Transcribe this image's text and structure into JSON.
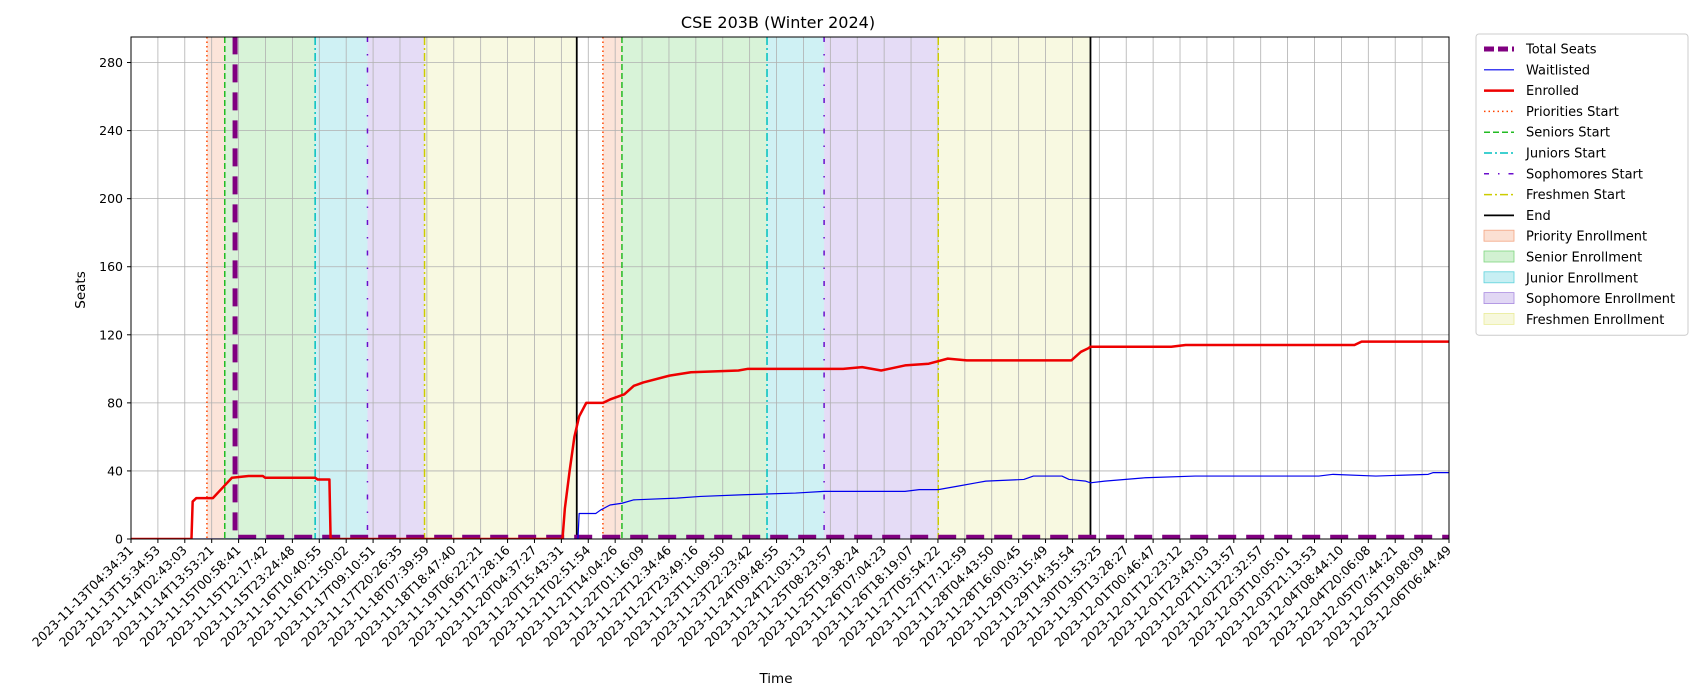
{
  "chart_data": {
    "type": "line",
    "title": "CSE 203B (Winter 2024)",
    "xlabel": "Time",
    "ylabel": "Seats",
    "ylim": [
      0,
      295
    ],
    "yticks": [
      0,
      40,
      80,
      120,
      160,
      200,
      240,
      280
    ],
    "grid": true,
    "legend_position": "outside-right",
    "x_range": [
      "2023-11-13T04:34:31",
      "2023-12-06T06:44:49"
    ],
    "x_tick_labels": [
      "2023-11-13T04:34:31",
      "2023-11-13T15:34:53",
      "2023-11-14T02:43:03",
      "2023-11-14T13:53:21",
      "2023-11-15T00:58:41",
      "2023-11-15T12:17:42",
      "2023-11-15T23:24:48",
      "2023-11-16T10:40:55",
      "2023-11-16T21:50:02",
      "2023-11-17T09:10:51",
      "2023-11-17T20:26:35",
      "2023-11-18T07:39:59",
      "2023-11-18T18:47:40",
      "2023-11-19T06:22:21",
      "2023-11-19T17:28:16",
      "2023-11-20T04:37:27",
      "2023-11-20T15:43:31",
      "2023-11-21T02:51:54",
      "2023-11-21T14:04:26",
      "2023-11-22T01:16:09",
      "2023-11-22T12:34:46",
      "2023-11-22T23:49:16",
      "2023-11-23T11:09:50",
      "2023-11-23T22:23:42",
      "2023-11-24T09:48:55",
      "2023-11-24T21:03:13",
      "2023-11-25T08:23:57",
      "2023-11-25T19:38:24",
      "2023-11-26T07:04:23",
      "2023-11-26T18:19:07",
      "2023-11-27T05:54:22",
      "2023-11-27T17:12:59",
      "2023-11-28T04:43:50",
      "2023-11-28T16:00:45",
      "2023-11-29T03:15:49",
      "2023-11-29T14:35:54",
      "2023-11-30T01:53:25",
      "2023-11-30T13:28:27",
      "2023-12-01T00:46:47",
      "2023-12-01T12:23:12",
      "2023-12-01T23:43:03",
      "2023-12-02T11:13:57",
      "2023-12-02T22:32:57",
      "2023-12-03T10:05:01",
      "2023-12-03T21:13:53",
      "2023-12-04T08:44:10",
      "2023-12-04T20:06:08",
      "2023-12-05T07:44:21",
      "2023-12-05T19:08:09",
      "2023-12-06T06:44:49"
    ],
    "phases": [
      {
        "name": "Priority Enrollment",
        "color": "#f4a582",
        "start": "2023-11-14T12:30:00",
        "end": "2023-11-14T20:00:00"
      },
      {
        "name": "Senior Enrollment",
        "color": "#7fd67f",
        "start": "2023-11-14T20:00:00",
        "end": "2023-11-16T10:00:00"
      },
      {
        "name": "Junior Enrollment",
        "color": "#5fd2dc",
        "start": "2023-11-16T10:00:00",
        "end": "2023-11-17T08:00:00"
      },
      {
        "name": "Sophomore Enrollment",
        "color": "#a98be0",
        "start": "2023-11-17T08:00:00",
        "end": "2023-11-18T08:00:00"
      },
      {
        "name": "Freshmen Enrollment",
        "color": "#e9ec9a",
        "start": "2023-11-18T08:00:00",
        "end": "2023-11-21T00:00:00"
      },
      {
        "name": "Priority Enrollment",
        "color": "#f4a582",
        "start": "2023-11-21T11:00:00",
        "end": "2023-11-21T19:00:00"
      },
      {
        "name": "Senior Enrollment",
        "color": "#7fd67f",
        "start": "2023-11-21T19:00:00",
        "end": "2023-11-24T08:00:00"
      },
      {
        "name": "Junior Enrollment",
        "color": "#5fd2dc",
        "start": "2023-11-24T08:00:00",
        "end": "2023-11-25T08:00:00"
      },
      {
        "name": "Sophomore Enrollment",
        "color": "#a98be0",
        "start": "2023-11-25T08:00:00",
        "end": "2023-11-27T08:00:00"
      },
      {
        "name": "Freshmen Enrollment",
        "color": "#e9ec9a",
        "start": "2023-11-27T08:00:00",
        "end": "2023-11-30T00:00:00"
      }
    ],
    "markers": [
      {
        "name": "Priorities Start",
        "style": "dotted",
        "color": "#ff4500",
        "x": [
          "2023-11-14T12:30:00",
          "2023-11-21T11:00:00"
        ]
      },
      {
        "name": "Seniors Start",
        "style": "dashed",
        "color": "#22bb22",
        "x": [
          "2023-11-14T20:00:00",
          "2023-11-21T19:00:00"
        ]
      },
      {
        "name": "Juniors Start",
        "style": "dashdot",
        "color": "#00c0c0",
        "x": [
          "2023-11-16T10:00:00",
          "2023-11-24T08:00:00"
        ]
      },
      {
        "name": "Sophomores Start",
        "style": "loosedash",
        "color": "#6a0dcc",
        "x": [
          "2023-11-17T08:00:00",
          "2023-11-25T08:00:00"
        ]
      },
      {
        "name": "Freshmen Start",
        "style": "dashdot",
        "color": "#cccc00",
        "x": [
          "2023-11-18T08:00:00",
          "2023-11-27T08:00:00"
        ]
      },
      {
        "name": "End",
        "style": "solid",
        "color": "#000000",
        "x": [
          "2023-11-21T00:00:00",
          "2023-11-30T00:00:00"
        ]
      }
    ],
    "series": [
      {
        "name": "Total Seats",
        "color": "#800080",
        "style": "dashed-thick",
        "points": [
          [
            "2023-11-13T04:34:31",
            300
          ],
          [
            "2023-11-15T00:20:00",
            300
          ],
          [
            "2023-11-15T00:20:00",
            1
          ],
          [
            "2023-12-06T06:44:49",
            1
          ]
        ]
      },
      {
        "name": "Waitlisted",
        "color": "#0000ee",
        "style": "solid-thin",
        "points": [
          [
            "2023-11-13T04:34:31",
            0
          ],
          [
            "2023-11-21T00:30:00",
            0
          ],
          [
            "2023-11-21T01:00:00",
            15
          ],
          [
            "2023-11-21T08:00:00",
            15
          ],
          [
            "2023-11-21T10:00:00",
            17
          ],
          [
            "2023-11-21T14:00:00",
            20
          ],
          [
            "2023-11-21T19:00:00",
            21
          ],
          [
            "2023-11-22T00:00:00",
            23
          ],
          [
            "2023-11-22T18:00:00",
            24
          ],
          [
            "2023-11-23T04:00:00",
            25
          ],
          [
            "2023-11-23T22:00:00",
            26
          ],
          [
            "2023-11-24T20:00:00",
            27
          ],
          [
            "2023-11-25T08:00:00",
            28
          ],
          [
            "2023-11-26T18:00:00",
            28
          ],
          [
            "2023-11-27T00:00:00",
            29
          ],
          [
            "2023-11-27T08:00:00",
            29
          ],
          [
            "2023-11-27T16:00:00",
            31
          ],
          [
            "2023-11-28T00:00:00",
            33
          ],
          [
            "2023-11-28T04:00:00",
            34
          ],
          [
            "2023-11-28T20:00:00",
            35
          ],
          [
            "2023-11-29T00:00:00",
            37
          ],
          [
            "2023-11-29T12:00:00",
            37
          ],
          [
            "2023-11-29T15:00:00",
            35
          ],
          [
            "2023-11-29T22:00:00",
            34
          ],
          [
            "2023-11-30T00:00:00",
            33
          ],
          [
            "2023-11-30T06:00:00",
            34
          ],
          [
            "2023-11-30T23:00:00",
            36
          ],
          [
            "2023-12-01T20:00:00",
            37
          ],
          [
            "2023-12-04T00:00:00",
            37
          ],
          [
            "2023-12-04T06:00:00",
            38
          ],
          [
            "2023-12-05T00:00:00",
            37
          ],
          [
            "2023-12-05T22:00:00",
            38
          ],
          [
            "2023-12-06T00:00:00",
            39
          ],
          [
            "2023-12-06T06:44:49",
            39
          ]
        ]
      },
      {
        "name": "Enrolled",
        "color": "#ee0000",
        "style": "solid-thick",
        "points": [
          [
            "2023-11-13T04:34:31",
            0
          ],
          [
            "2023-11-14T06:00:00",
            0
          ],
          [
            "2023-11-14T06:30:00",
            22
          ],
          [
            "2023-11-14T08:00:00",
            24
          ],
          [
            "2023-11-14T15:00:00",
            24
          ],
          [
            "2023-11-14T19:00:00",
            30
          ],
          [
            "2023-11-14T23:00:00",
            36
          ],
          [
            "2023-11-15T06:00:00",
            37
          ],
          [
            "2023-11-15T12:00:00",
            37
          ],
          [
            "2023-11-15T13:00:00",
            36
          ],
          [
            "2023-11-16T10:00:00",
            36
          ],
          [
            "2023-11-16T11:00:00",
            35
          ],
          [
            "2023-11-16T16:00:00",
            35
          ],
          [
            "2023-11-16T16:30:00",
            0
          ],
          [
            "2023-11-20T18:00:00",
            0
          ],
          [
            "2023-11-20T19:00:00",
            18
          ],
          [
            "2023-11-20T21:00:00",
            40
          ],
          [
            "2023-11-20T23:00:00",
            60
          ],
          [
            "2023-11-21T01:00:00",
            72
          ],
          [
            "2023-11-21T04:00:00",
            80
          ],
          [
            "2023-11-21T11:00:00",
            80
          ],
          [
            "2023-11-21T14:00:00",
            82
          ],
          [
            "2023-11-21T20:00:00",
            85
          ],
          [
            "2023-11-22T00:00:00",
            90
          ],
          [
            "2023-11-22T04:00:00",
            92
          ],
          [
            "2023-11-22T15:00:00",
            96
          ],
          [
            "2023-11-23T00:00:00",
            98
          ],
          [
            "2023-11-23T20:00:00",
            99
          ],
          [
            "2023-11-24T00:00:00",
            100
          ],
          [
            "2023-11-25T16:00:00",
            100
          ],
          [
            "2023-11-26T00:00:00",
            101
          ],
          [
            "2023-11-26T08:00:00",
            99
          ],
          [
            "2023-11-26T18:00:00",
            102
          ],
          [
            "2023-11-27T04:00:00",
            103
          ],
          [
            "2023-11-27T12:00:00",
            106
          ],
          [
            "2023-11-27T20:00:00",
            105
          ],
          [
            "2023-11-29T16:00:00",
            105
          ],
          [
            "2023-11-29T20:00:00",
            110
          ],
          [
            "2023-11-29T23:00:00",
            112
          ],
          [
            "2023-11-30T00:00:00",
            113
          ],
          [
            "2023-12-01T10:00:00",
            113
          ],
          [
            "2023-12-01T16:00:00",
            114
          ],
          [
            "2023-12-04T15:00:00",
            114
          ],
          [
            "2023-12-04T18:00:00",
            116
          ],
          [
            "2023-12-06T06:44:49",
            116
          ]
        ]
      }
    ],
    "legend": [
      {
        "label": "Total Seats",
        "kind": "line",
        "color": "#800080",
        "style": "dashed-thick"
      },
      {
        "label": "Waitlisted",
        "kind": "line",
        "color": "#0000ee",
        "style": "solid-thin"
      },
      {
        "label": "Enrolled",
        "kind": "line",
        "color": "#ee0000",
        "style": "solid-thick"
      },
      {
        "label": "Priorities Start",
        "kind": "line",
        "color": "#ff4500",
        "style": "dotted"
      },
      {
        "label": "Seniors Start",
        "kind": "line",
        "color": "#22bb22",
        "style": "dashed"
      },
      {
        "label": "Juniors Start",
        "kind": "line",
        "color": "#00c0c0",
        "style": "dashdot"
      },
      {
        "label": "Sophomores Start",
        "kind": "line",
        "color": "#6a0dcc",
        "style": "loosedash"
      },
      {
        "label": "Freshmen Start",
        "kind": "line",
        "color": "#cccc00",
        "style": "dashdot"
      },
      {
        "label": "End",
        "kind": "line",
        "color": "#000000",
        "style": "solid"
      },
      {
        "label": "Priority Enrollment",
        "kind": "patch",
        "color": "#f4a582"
      },
      {
        "label": "Senior Enrollment",
        "kind": "patch",
        "color": "#7fd67f"
      },
      {
        "label": "Junior Enrollment",
        "kind": "patch",
        "color": "#5fd2dc"
      },
      {
        "label": "Sophomore Enrollment",
        "kind": "patch",
        "color": "#a98be0"
      },
      {
        "label": "Freshmen Enrollment",
        "kind": "patch",
        "color": "#e9ec9a"
      }
    ]
  }
}
